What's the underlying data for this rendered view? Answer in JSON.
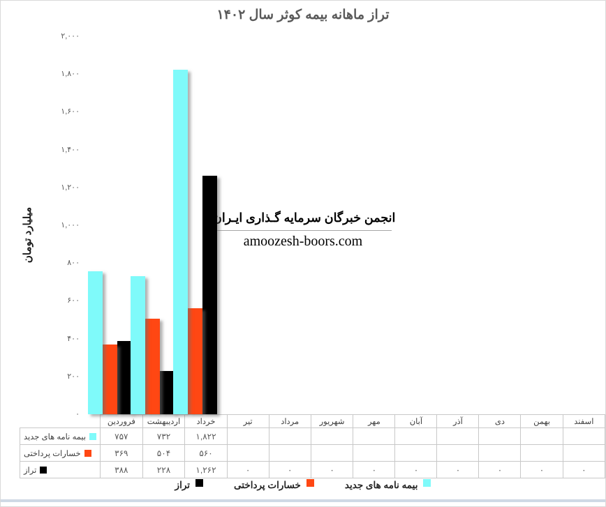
{
  "title": "تراز ماهانه بیمه کوثر سال ۱۴۰۲",
  "y_axis": {
    "title": "میلیارد تومان",
    "tick_values": [
      0,
      200,
      400,
      600,
      800,
      1000,
      1200,
      1400,
      1600,
      1800,
      2000
    ],
    "tick_labels": [
      "۰",
      "۲۰۰",
      "۴۰۰",
      "۶۰۰",
      "۸۰۰",
      "۱,۰۰۰",
      "۱,۲۰۰",
      "۱,۴۰۰",
      "۱,۶۰۰",
      "۱,۸۰۰",
      "۲,۰۰۰"
    ]
  },
  "watermark": {
    "line1": "انجمن خبرگان سرمایه گـذاری ایـران",
    "line2": "amoozesh-boors.com"
  },
  "colors": {
    "new_policies": "#7FFAFA",
    "paid_losses": "#FF4713",
    "balance": "#000000",
    "title_text": "#595959",
    "table_border": "#c8c8c8"
  },
  "chart_data": {
    "type": "bar",
    "title": "تراز ماهانه بیمه کوثر سال ۱۴۰۲",
    "ylabel": "میلیارد تومان",
    "ylim": [
      0,
      2000
    ],
    "grid": false,
    "legend_position": "bottom",
    "categories": [
      "فروردین",
      "اردیبهشت",
      "خرداد",
      "تیر",
      "مرداد",
      "شهریور",
      "مهر",
      "آبان",
      "آذر",
      "دی",
      "بهمن",
      "اسفند"
    ],
    "series": [
      {
        "name": "بیمه نامه های جدید",
        "color": "#7FFAFA",
        "values": [
          757,
          732,
          1822,
          null,
          null,
          null,
          null,
          null,
          null,
          null,
          null,
          null
        ],
        "display": [
          "۷۵۷",
          "۷۳۲",
          "۱,۸۲۲",
          "",
          "",
          "",
          "",
          "",
          "",
          "",
          "",
          ""
        ]
      },
      {
        "name": "خسارات پرداختی",
        "color": "#FF4713",
        "values": [
          369,
          504,
          560,
          null,
          null,
          null,
          null,
          null,
          null,
          null,
          null,
          null
        ],
        "display": [
          "۳۶۹",
          "۵۰۴",
          "۵۶۰",
          "",
          "",
          "",
          "",
          "",
          "",
          "",
          "",
          ""
        ]
      },
      {
        "name": "تراز",
        "color": "#000000",
        "values": [
          388,
          228,
          1262,
          0,
          0,
          0,
          0,
          0,
          0,
          0,
          0,
          0
        ],
        "display": [
          "۳۸۸",
          "۲۲۸",
          "۱,۲۶۲",
          "۰",
          "۰",
          "۰",
          "۰",
          "۰",
          "۰",
          "۰",
          "۰",
          "۰"
        ]
      }
    ]
  },
  "legend": {
    "items": [
      {
        "label": "تراز",
        "color": "#000000"
      },
      {
        "label": "خسارات پرداختی",
        "color": "#FF4713"
      },
      {
        "label": "بیمه نامه های جدید",
        "color": "#7FFAFA"
      }
    ]
  }
}
